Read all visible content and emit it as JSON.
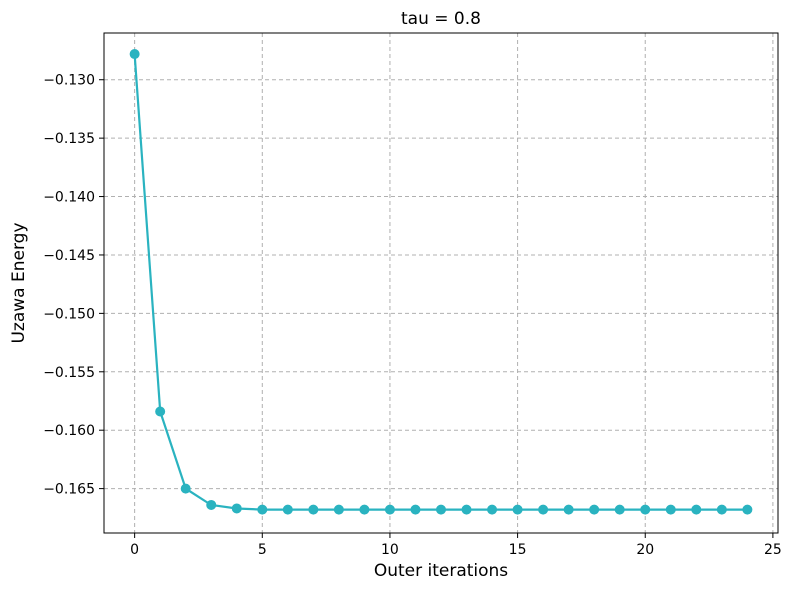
{
  "chart_data": {
    "type": "line",
    "title": "tau = 0.8",
    "xlabel": "Outer iterations",
    "ylabel": "Uzawa Energy",
    "xlim": [
      -1.2,
      25.2
    ],
    "ylim": [
      -0.1688,
      -0.126
    ],
    "xticks": [
      0,
      5,
      10,
      15,
      20,
      25
    ],
    "yticks": [
      -0.13,
      -0.135,
      -0.14,
      -0.145,
      -0.15,
      -0.155,
      -0.16,
      -0.165
    ],
    "xtick_labels": [
      "0",
      "5",
      "10",
      "15",
      "20",
      "25"
    ],
    "ytick_labels": [
      "−0.130",
      "−0.135",
      "−0.140",
      "−0.145",
      "−0.150",
      "−0.155",
      "−0.160",
      "−0.165"
    ],
    "grid": true,
    "series": [
      {
        "color": "#2ab3c0",
        "marker": "circle",
        "x": [
          0,
          1,
          2,
          3,
          4,
          5,
          6,
          7,
          8,
          9,
          10,
          11,
          12,
          13,
          14,
          15,
          16,
          17,
          18,
          19,
          20,
          21,
          22,
          23,
          24
        ],
        "values": [
          -0.1278,
          -0.1584,
          -0.165,
          -0.1664,
          -0.1667,
          -0.1668,
          -0.1668,
          -0.1668,
          -0.1668,
          -0.1668,
          -0.1668,
          -0.1668,
          -0.1668,
          -0.1668,
          -0.1668,
          -0.1668,
          -0.1668,
          -0.1668,
          -0.1668,
          -0.1668,
          -0.1668,
          -0.1668,
          -0.1668,
          -0.1668,
          -0.1668
        ]
      }
    ]
  }
}
